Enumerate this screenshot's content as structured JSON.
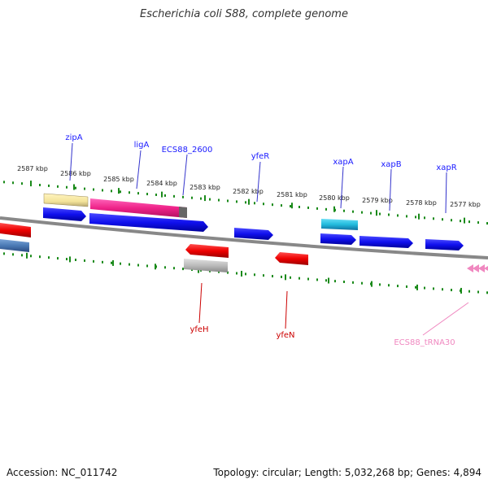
{
  "title": "Escherichia coli S88, complete genome",
  "accession": "Accession: NC_011742",
  "summary": "Topology: circular; Length: 5,032,268 bp; Genes: 4,894",
  "ruler_labels": [
    "2587 kbp",
    "2586 kbp",
    "2585 kbp",
    "2584 kbp",
    "2583 kbp",
    "2582 kbp",
    "2581 kbp",
    "2580 kbp",
    "2579 kbp",
    "2578 kbp",
    "2577 kbp"
  ],
  "genes_top": [
    {
      "name": "zipA",
      "color": "#1a1aff"
    },
    {
      "name": "ligA",
      "color": "#1a1aff"
    },
    {
      "name": "ECS88_2600",
      "color": "#1a1aff"
    },
    {
      "name": "yfeR",
      "color": "#1a1aff"
    },
    {
      "name": "xapA",
      "color": "#1a1aff"
    },
    {
      "name": "xapB",
      "color": "#1a1aff"
    },
    {
      "name": "xapR",
      "color": "#1a1aff"
    }
  ],
  "genes_bottom": [
    {
      "name": "yfeH",
      "color": "#cc0000"
    },
    {
      "name": "yfeN",
      "color": "#cc0000"
    },
    {
      "name": "ECS88_tRNA30",
      "color": "#ee88aa"
    }
  ],
  "colors": {
    "forward_gene": "#1010ee",
    "reverse_gene": "#ee0000",
    "ruler_tick": "#1a8a1a",
    "backbone": "#888888",
    "rrna_yellow": "#f4e49a",
    "feature_pink": "#ee2288",
    "feature_cyan": "#22bbdd",
    "feature_grey": "#bbbbbb",
    "feature_steelblue": "#4a7ab5",
    "trna_pink": "#f088c0"
  }
}
